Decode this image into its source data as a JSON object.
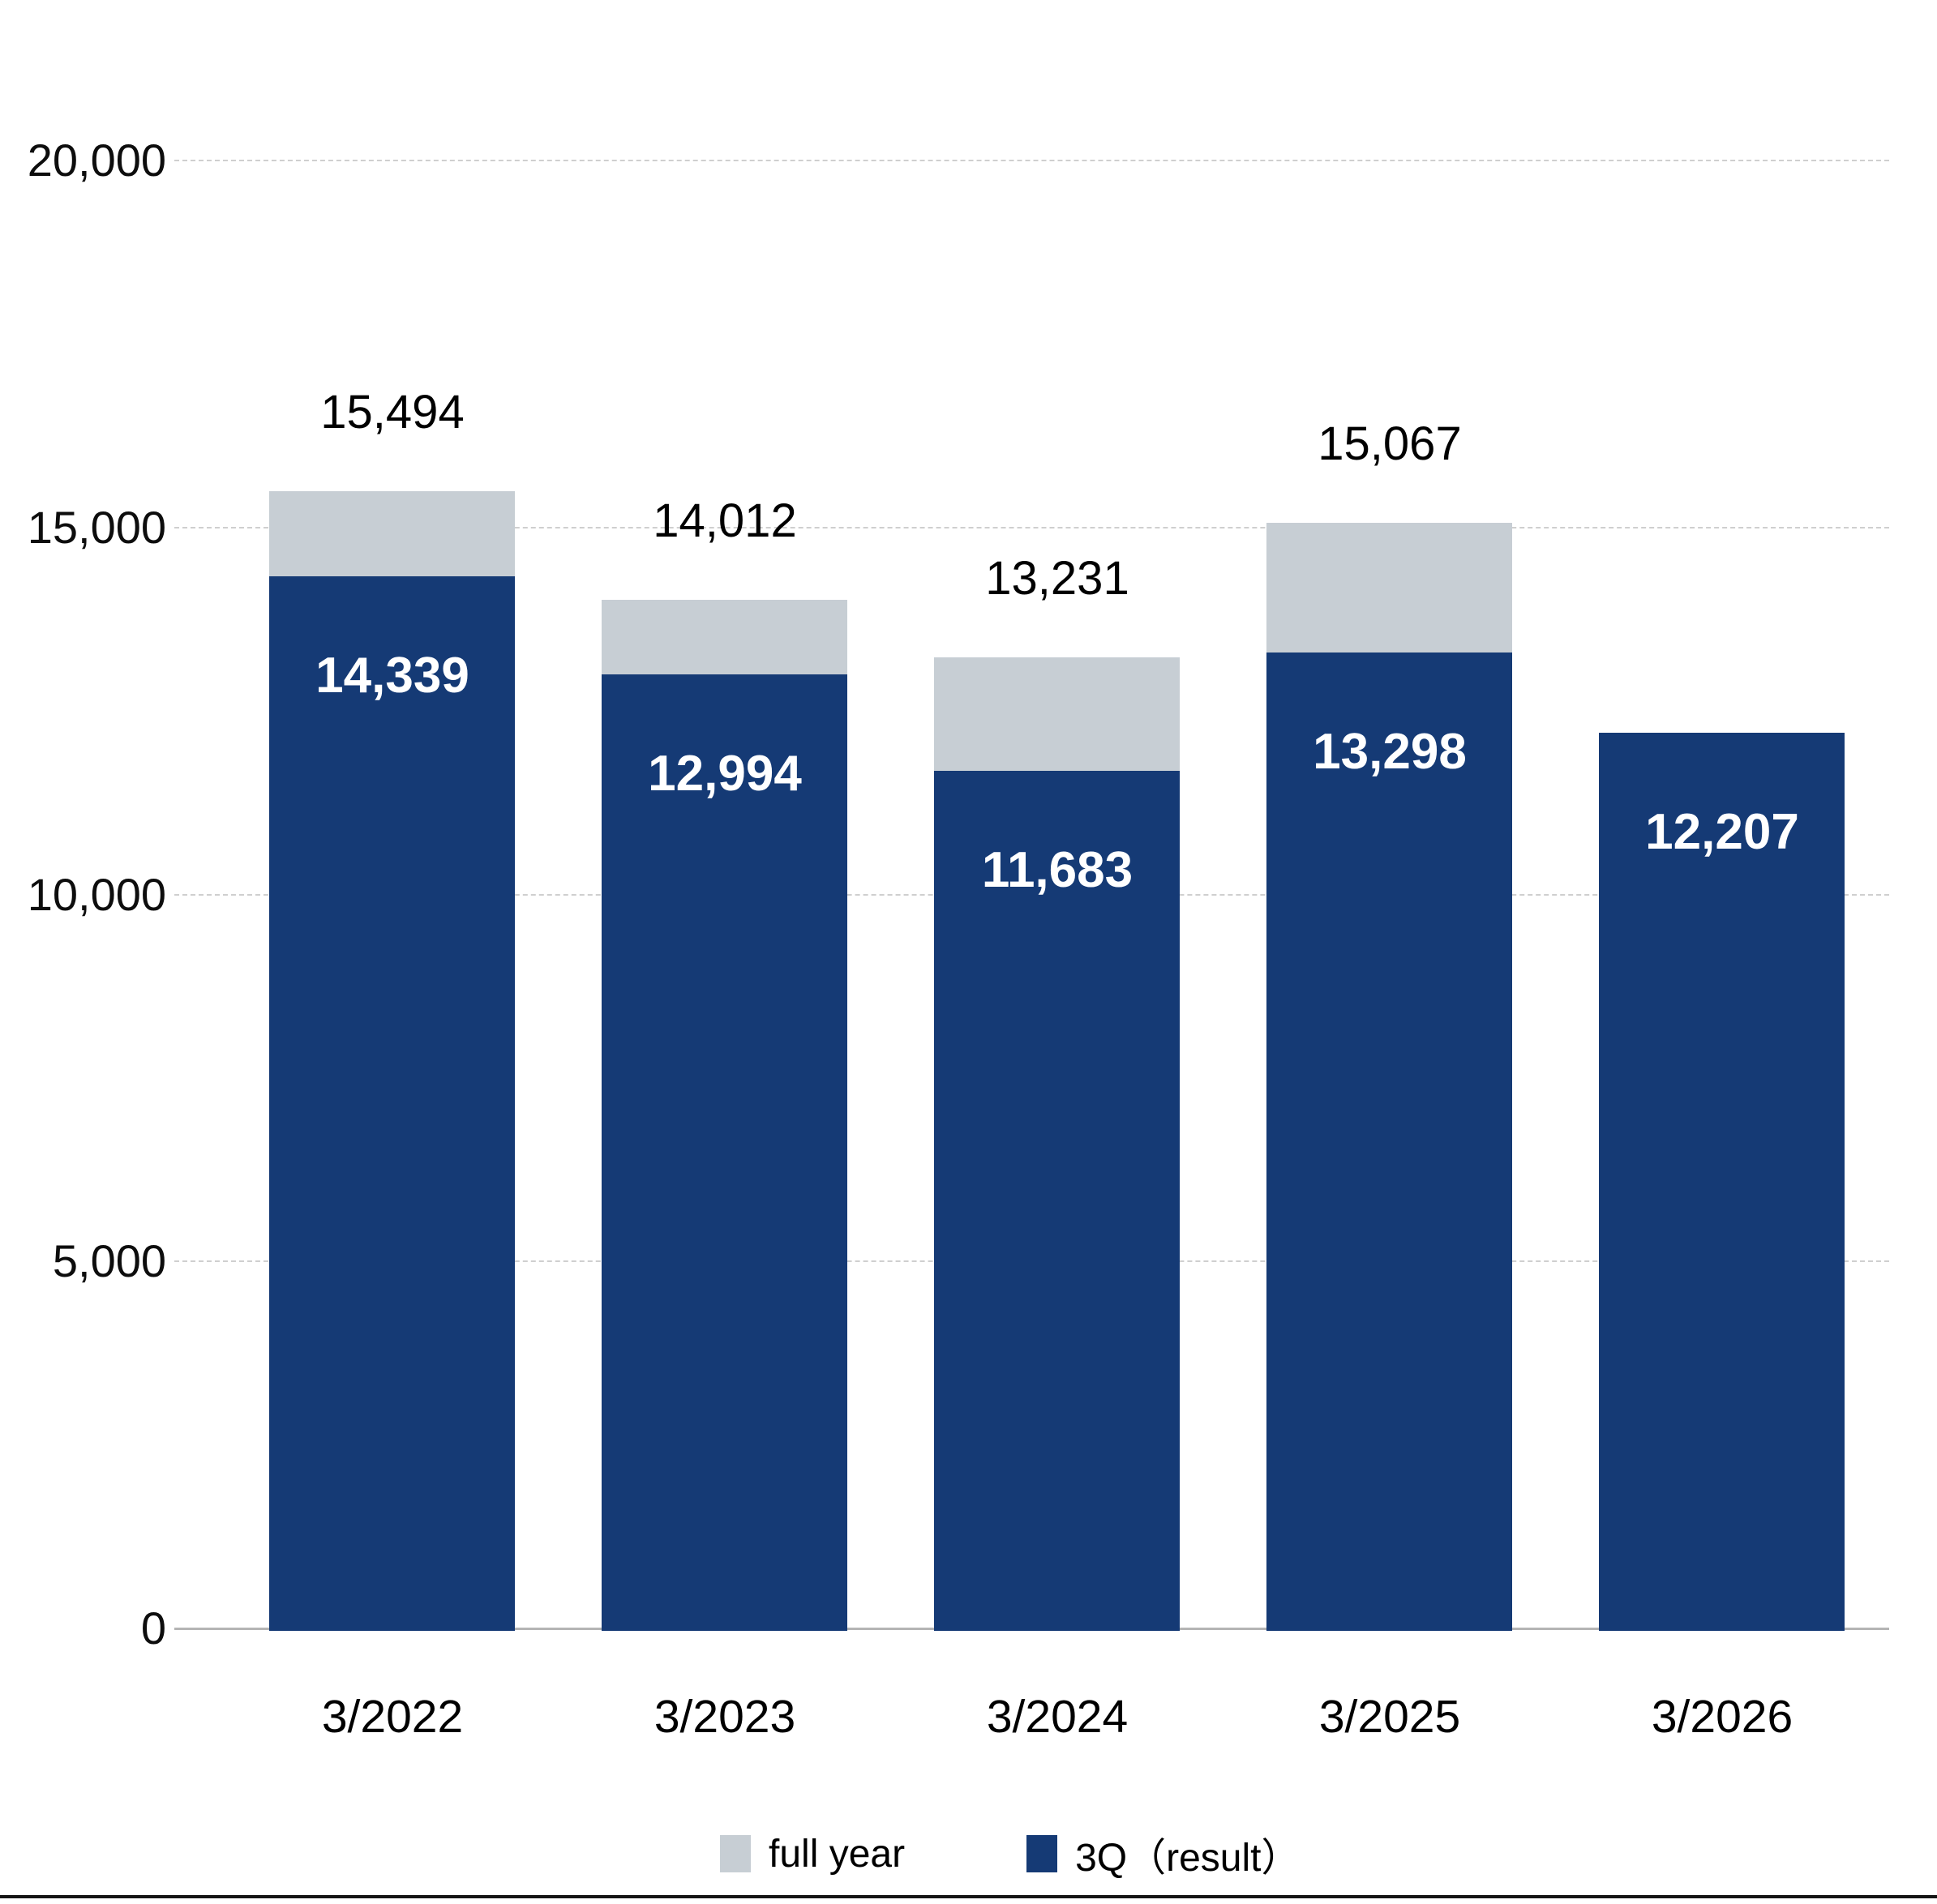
{
  "chart_data": {
    "type": "bar",
    "title": "",
    "categories": [
      "3/2022",
      "3/2023",
      "3/2024",
      "3/2025",
      "3/2026"
    ],
    "series": [
      {
        "name": "full year",
        "color": "#c7ced4",
        "values": [
          15494,
          14012,
          13231,
          15067,
          null
        ],
        "labels": [
          "15,494",
          "14,012",
          "13,231",
          "15,067",
          ""
        ]
      },
      {
        "name": "3Q（result）",
        "color": "#153a75",
        "values": [
          14339,
          12994,
          11683,
          13298,
          12207
        ],
        "labels": [
          "14,339",
          "12,994",
          "11,683",
          "13,298",
          "12,207"
        ]
      }
    ],
    "ylim": [
      0,
      20000
    ],
    "yticks": [
      {
        "value": 0,
        "label": "0"
      },
      {
        "value": 5000,
        "label": "5,000"
      },
      {
        "value": 10000,
        "label": "10,000"
      },
      {
        "value": 15000,
        "label": "15,000"
      },
      {
        "value": 20000,
        "label": "20,000"
      }
    ],
    "grid": "horizontal-dashed",
    "legend_position": "bottom"
  },
  "colors": {
    "full_year": "#c7ced4",
    "q3_result": "#153a75",
    "gridline": "#cfcfcf",
    "axis_line": "#b4b4b4",
    "outside_label_text": "#000000",
    "inside_label_text": "#ffffff",
    "bottom_rule": "#141414",
    "background": "#ffffff"
  }
}
